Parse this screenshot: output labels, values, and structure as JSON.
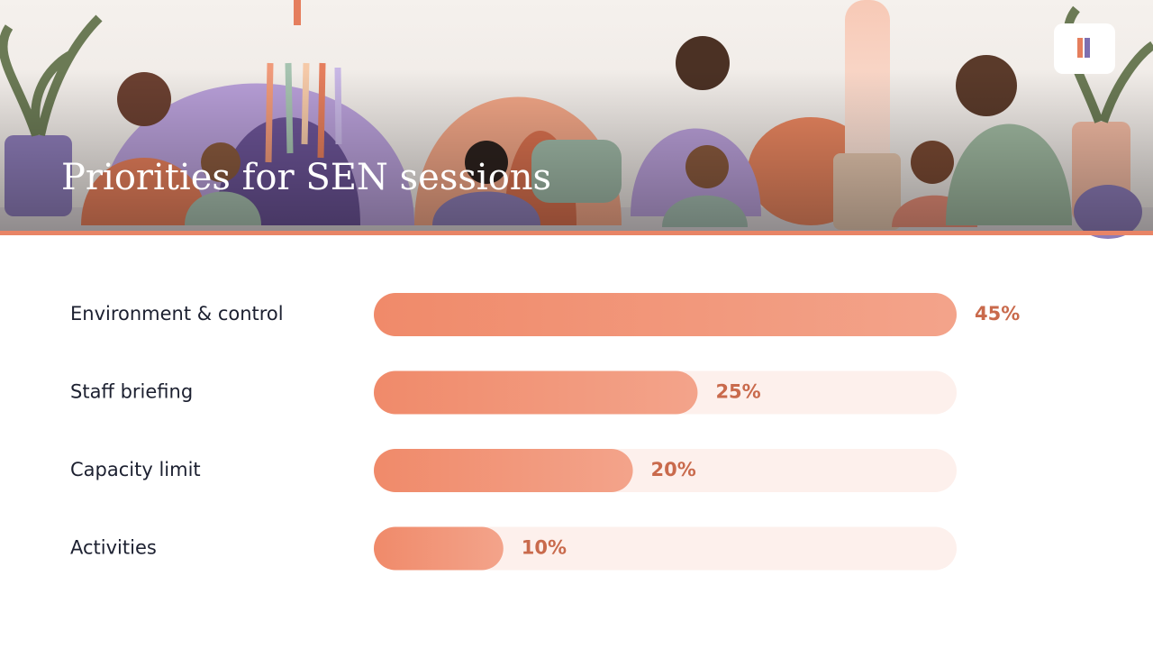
{
  "chart_data": {
    "type": "bar",
    "orientation": "horizontal",
    "title": "Priorities for SEN sessions",
    "categories": [
      "Environment & control",
      "Staff briefing",
      "Capacity limit",
      "Activities"
    ],
    "values": [
      45,
      25,
      20,
      10
    ],
    "value_labels": [
      "45%",
      "25%",
      "20%",
      "10%"
    ],
    "color": "#f08a6a",
    "track_color": "#fdf0ec",
    "xlim": [
      0,
      45
    ]
  }
}
